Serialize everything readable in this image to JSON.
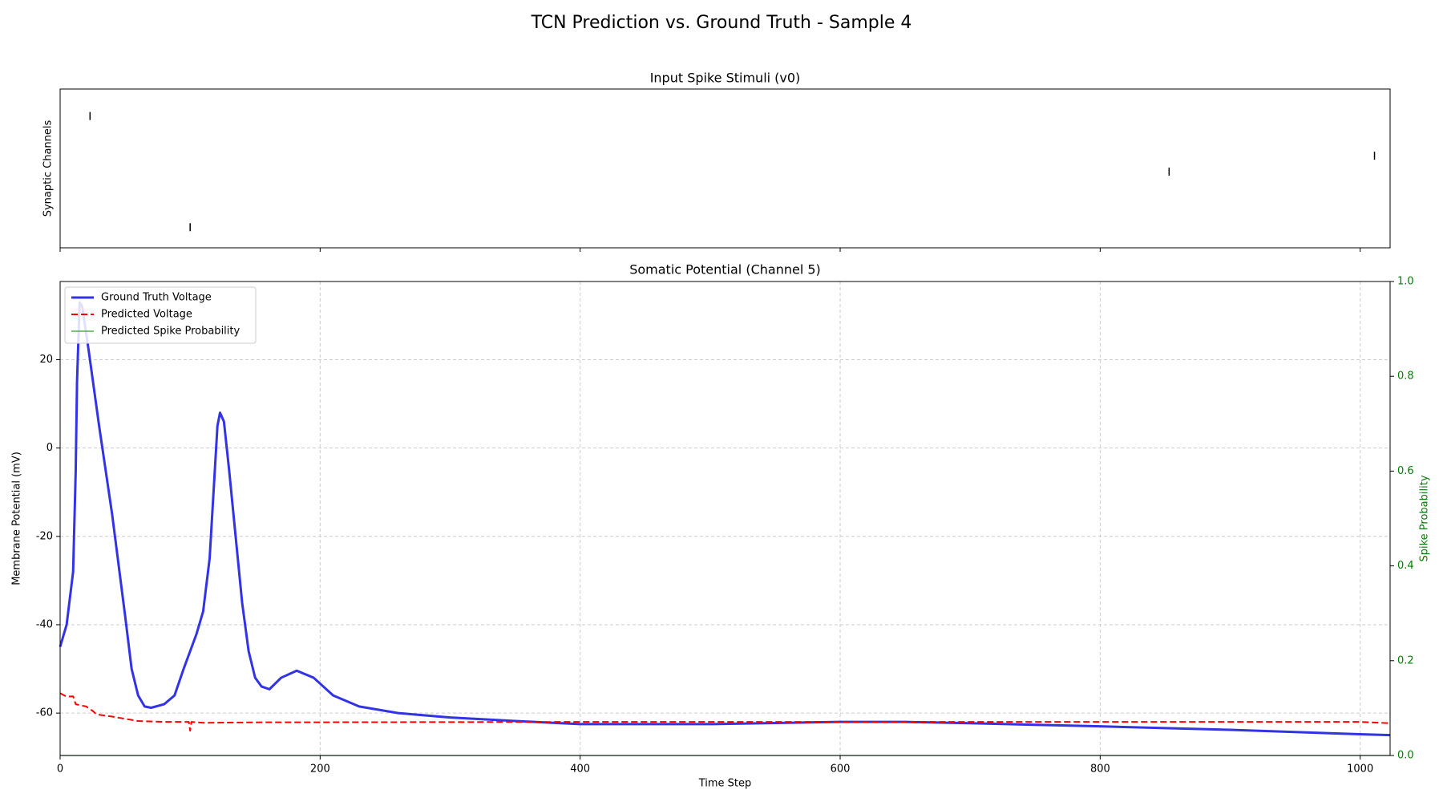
{
  "title": "TCN Prediction vs. Ground Truth - Sample 4",
  "chart_data": [
    {
      "type": "raster",
      "title": "Input Spike Stimuli (v0)",
      "ylabel": "Synaptic Channels",
      "xlim": [
        0,
        1023
      ],
      "ylim": [
        0,
        100
      ],
      "color": "#000000",
      "x": [
        23,
        100,
        853,
        1011
      ],
      "values": [
        83,
        13,
        48,
        58
      ]
    },
    {
      "type": "line",
      "title": "Somatic Potential (Channel 5)",
      "xlabel": "Time Step",
      "ylabel": "Membrane Potential (mV)",
      "y2label": "Spike Probability",
      "xlim": [
        0,
        1023
      ],
      "ylim": [
        -69.6,
        37.7
      ],
      "y2lim": [
        0,
        1
      ],
      "xticks": [
        0,
        200,
        400,
        600,
        800,
        1000
      ],
      "yticks": [
        -60,
        -40,
        -20,
        0,
        20
      ],
      "y2ticks": [
        {
          "value": 0,
          "label": "0.0"
        },
        0.2,
        0.4,
        0.6,
        0.8,
        {
          "value": 1,
          "label": "1.0"
        }
      ],
      "grid": true,
      "legend": "upper left",
      "series": [
        {
          "name": "Ground Truth Voltage",
          "color": "#3333e6",
          "style": "solid",
          "x": [
            0,
            5,
            10,
            12,
            13,
            15,
            17,
            22,
            30,
            40,
            50,
            55,
            60,
            65,
            70,
            80,
            88,
            95,
            100,
            105,
            110,
            115,
            118,
            121,
            123,
            126,
            130,
            135,
            140,
            145,
            150,
            155,
            161,
            170,
            182,
            195,
            210,
            230,
            260,
            300,
            350,
            400,
            500,
            600,
            650,
            700,
            800,
            900,
            1000,
            1023
          ],
          "values": [
            -45,
            -40,
            -28,
            -5,
            15,
            33,
            32,
            22,
            5,
            -15,
            -38,
            -50,
            -56,
            -58.5,
            -58.8,
            -58,
            -56,
            -50,
            -46,
            -42,
            -37,
            -25,
            -10,
            5,
            8,
            6,
            -5,
            -20,
            -35,
            -46,
            -52,
            -54,
            -54.6,
            -52,
            -50.4,
            -52,
            -56,
            -58.5,
            -60,
            -61,
            -61.8,
            -62.5,
            -62.5,
            -62,
            -62,
            -62.3,
            -63,
            -63.8,
            -64.8,
            -65
          ]
        },
        {
          "name": "Predicted Voltage",
          "color": "#ff0000",
          "style": "dashed",
          "x": [
            0,
            5,
            10,
            12,
            20,
            25,
            28,
            40,
            50,
            60,
            80,
            99,
            100,
            101,
            110,
            150,
            400,
            800,
            1000,
            1023
          ],
          "values": [
            -55.5,
            -56.3,
            -56.2,
            -58,
            -58.5,
            -59.5,
            -60.3,
            -60.8,
            -61.3,
            -61.8,
            -62,
            -62,
            -64,
            -62,
            -62.2,
            -62.1,
            -62,
            -62,
            -62,
            -62.3
          ]
        },
        {
          "name": "Predicted Spike Probability",
          "color": "#2ca02c",
          "style": "thin",
          "axis": "y2",
          "x": [
            0,
            1023
          ],
          "values": [
            0,
            0
          ]
        }
      ]
    }
  ]
}
